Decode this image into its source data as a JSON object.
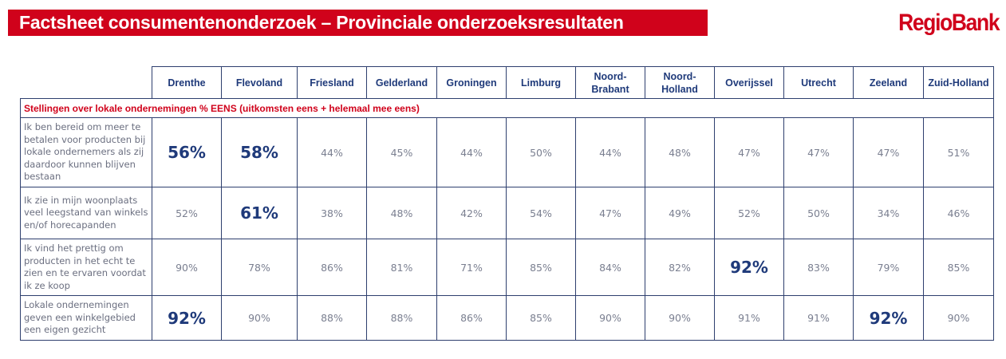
{
  "title": "Factsheet consumentenonderzoek – Provinciale onderzoeksresultaten",
  "logo": "RegioBank",
  "colors": {
    "brand_red": "#d0021b",
    "navy": "#1f3a7a"
  },
  "columns": [
    "Drenthe",
    "Flevoland",
    "Friesland",
    "Gelderland",
    "Groningen",
    "Limburg",
    "Noord-Brabant",
    "Noord-Holland",
    "Overijssel",
    "Utrecht",
    "Zeeland",
    "Zuid-Holland"
  ],
  "section_title": "Stellingen over lokale ondernemingen % EENS (uitkomsten eens + helemaal mee eens)",
  "rows": [
    {
      "statement": "Ik ben bereid om meer te betalen voor producten bij lokale ondernemers als zij daardoor kunnen blijven bestaan",
      "values": [
        "56%",
        "58%",
        "44%",
        "45%",
        "44%",
        "50%",
        "44%",
        "48%",
        "47%",
        "47%",
        "47%",
        "51%"
      ],
      "highlight": [
        0,
        1
      ]
    },
    {
      "statement": "Ik zie in mijn woonplaats veel leegstand van winkels en/of horecapanden",
      "values": [
        "52%",
        "61%",
        "38%",
        "48%",
        "42%",
        "54%",
        "47%",
        "49%",
        "52%",
        "50%",
        "34%",
        "46%"
      ],
      "highlight": [
        1
      ]
    },
    {
      "statement": "Ik vind het prettig om producten in het echt te zien en te ervaren voordat ik ze koop",
      "values": [
        "90%",
        "78%",
        "86%",
        "81%",
        "71%",
        "85%",
        "84%",
        "82%",
        "92%",
        "83%",
        "79%",
        "85%"
      ],
      "highlight": [
        8
      ]
    },
    {
      "statement": "Lokale ondernemingen geven een winkelgebied een eigen gezicht",
      "values": [
        "92%",
        "90%",
        "88%",
        "88%",
        "86%",
        "85%",
        "90%",
        "90%",
        "91%",
        "91%",
        "92%",
        "90%"
      ],
      "highlight": [
        0,
        10
      ]
    }
  ]
}
